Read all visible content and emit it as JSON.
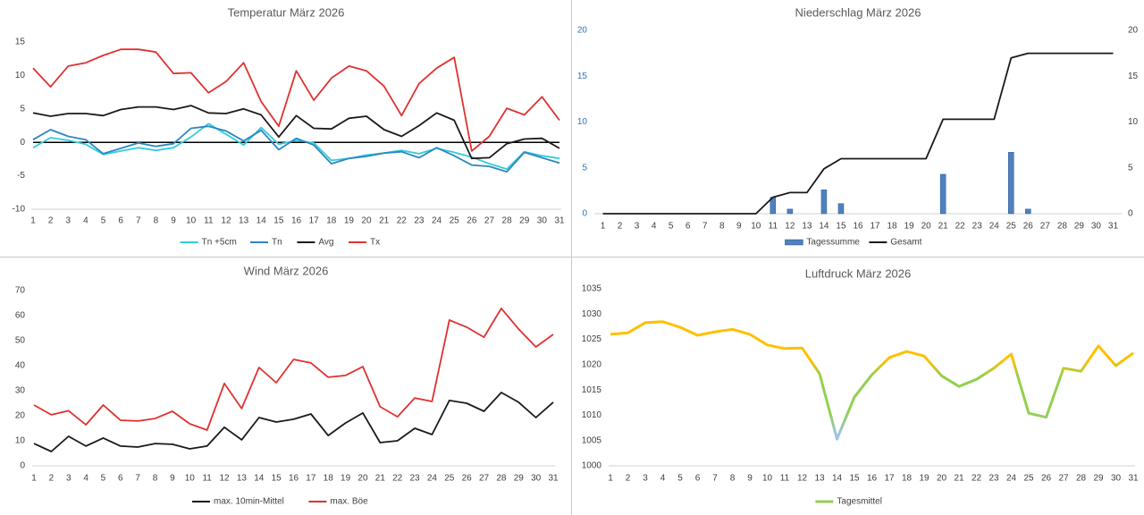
{
  "chart_data": [
    {
      "type": "line",
      "title": "Temperatur März 2026",
      "categories": [
        "1",
        "2",
        "3",
        "4",
        "5",
        "6",
        "7",
        "8",
        "9",
        "10",
        "11",
        "12",
        "13",
        "14",
        "15",
        "16",
        "17",
        "18",
        "19",
        "20",
        "21",
        "22",
        "23",
        "24",
        "25",
        "26",
        "27",
        "28",
        "29",
        "30",
        "31"
      ],
      "series": [
        {
          "name": "Tn +5cm",
          "color": "#33ccdd",
          "values": [
            -0.8,
            0.7,
            0.3,
            -0.3,
            -1.8,
            -1.3,
            -0.8,
            -1.2,
            -0.8,
            0.8,
            2.8,
            1.2,
            -0.4,
            2.2,
            -0.3,
            0.3,
            -0.1,
            -2.7,
            -2.4,
            -1.9,
            -1.6,
            -1.2,
            -1.7,
            -0.9,
            -1.5,
            -2.2,
            -3.2,
            -4.0,
            -1.4,
            -2.0,
            -2.4
          ]
        },
        {
          "name": "Tn",
          "color": "#2e86c1",
          "values": [
            0.4,
            1.9,
            0.9,
            0.4,
            -1.7,
            -0.9,
            -0.1,
            -0.6,
            -0.2,
            2.1,
            2.4,
            1.7,
            0.2,
            1.8,
            -1.1,
            0.6,
            -0.4,
            -3.2,
            -2.4,
            -2.1,
            -1.6,
            -1.4,
            -2.3,
            -0.8,
            -2.0,
            -3.4,
            -3.6,
            -4.4,
            -1.5,
            -2.3,
            -3.1
          ]
        },
        {
          "name": "Avg",
          "color": "#1a1a1a",
          "values": [
            4.4,
            3.9,
            4.3,
            4.3,
            4.0,
            4.9,
            5.3,
            5.3,
            4.9,
            5.5,
            4.4,
            4.3,
            5.0,
            4.1,
            0.8,
            4.0,
            2.1,
            2.0,
            3.6,
            3.9,
            1.9,
            0.9,
            2.5,
            4.4,
            3.3,
            -2.4,
            -2.3,
            -0.2,
            0.5,
            0.6,
            -0.9
          ]
        },
        {
          "name": "Tx",
          "color": "#e03131",
          "values": [
            11.1,
            8.3,
            11.4,
            11.9,
            13.0,
            13.9,
            13.9,
            13.5,
            10.3,
            10.4,
            7.4,
            9.1,
            11.9,
            6.1,
            2.4,
            10.7,
            6.3,
            9.6,
            11.4,
            10.7,
            8.4,
            4.0,
            8.8,
            11.1,
            12.7,
            -1.3,
            0.9,
            5.1,
            4.1,
            6.8,
            3.3
          ]
        }
      ],
      "ylim": [
        -10,
        15
      ],
      "yticks": [
        -10,
        -5,
        0,
        5,
        10,
        15
      ],
      "zero_line": true
    },
    {
      "type": "combo",
      "title": "Niederschlag März 2026",
      "categories": [
        "1",
        "2",
        "3",
        "4",
        "5",
        "6",
        "7",
        "8",
        "9",
        "10",
        "11",
        "12",
        "13",
        "14",
        "15",
        "16",
        "17",
        "18",
        "19",
        "20",
        "21",
        "22",
        "23",
        "24",
        "25",
        "26",
        "27",
        "28",
        "29",
        "30",
        "31"
      ],
      "series": [
        {
          "name": "Tagessumme",
          "type": "bar",
          "color": "#4f81bd",
          "values": [
            0,
            0,
            0,
            0,
            0,
            0,
            0,
            0,
            0,
            0,
            1.8,
            0.5,
            0,
            2.6,
            1.1,
            0,
            0,
            0,
            0,
            0,
            4.3,
            0,
            0,
            0,
            6.7,
            0.5,
            0,
            0,
            0,
            0,
            0
          ]
        },
        {
          "name": "Gesamt",
          "type": "line",
          "axis": "y2",
          "color": "#1a1a1a",
          "values": [
            0,
            0,
            0,
            0,
            0,
            0,
            0,
            0,
            0,
            0,
            1.8,
            2.3,
            2.3,
            4.9,
            6.0,
            6.0,
            6.0,
            6.0,
            6.0,
            6.0,
            10.3,
            10.3,
            10.3,
            10.3,
            17.0,
            17.5,
            17.5,
            17.5,
            17.5,
            17.5,
            17.5
          ]
        }
      ],
      "ylim": [
        0,
        20
      ],
      "yticks": [
        0,
        5,
        10,
        15,
        20
      ],
      "ytick_color": "#2e75b6",
      "y2lim": [
        0,
        20
      ],
      "y2ticks": [
        0,
        5,
        10,
        15,
        20
      ]
    },
    {
      "type": "line",
      "title": "Wind März 2026",
      "categories": [
        "1",
        "2",
        "3",
        "4",
        "5",
        "6",
        "7",
        "8",
        "9",
        "10",
        "11",
        "12",
        "13",
        "14",
        "15",
        "16",
        "17",
        "18",
        "19",
        "20",
        "21",
        "22",
        "23",
        "24",
        "25",
        "26",
        "27",
        "28",
        "29",
        "30",
        "31"
      ],
      "series": [
        {
          "name": "max. 10min-Mittel",
          "color": "#1a1a1a",
          "values": [
            8.9,
            5.7,
            11.8,
            7.9,
            11.1,
            7.9,
            7.5,
            8.9,
            8.6,
            6.8,
            7.9,
            15.4,
            10.4,
            19.3,
            17.5,
            18.6,
            20.7,
            12.1,
            17.1,
            21.1,
            9.3,
            10.0,
            15.0,
            12.5,
            26.1,
            25.0,
            21.8,
            29.3,
            25.4,
            19.3,
            25.4
          ]
        },
        {
          "name": "max. Böe",
          "color": "#e03131",
          "values": [
            24.3,
            20.4,
            22.0,
            16.4,
            24.3,
            18.2,
            17.9,
            18.9,
            21.8,
            16.8,
            14.3,
            32.9,
            22.9,
            39.3,
            33.2,
            42.5,
            41.1,
            35.4,
            36.1,
            39.6,
            23.6,
            19.6,
            27.1,
            25.7,
            58.2,
            55.4,
            51.4,
            62.9,
            54.6,
            47.5,
            52.5
          ]
        }
      ],
      "ylim": [
        0,
        70
      ],
      "yticks": [
        0,
        10,
        20,
        30,
        40,
        50,
        60,
        70
      ]
    },
    {
      "type": "line",
      "title": "Luftdruck März 2026",
      "categories": [
        "1",
        "2",
        "3",
        "4",
        "5",
        "6",
        "7",
        "8",
        "9",
        "10",
        "11",
        "12",
        "13",
        "14",
        "15",
        "16",
        "17",
        "18",
        "19",
        "20",
        "21",
        "22",
        "23",
        "24",
        "25",
        "26",
        "27",
        "28",
        "29",
        "30",
        "31"
      ],
      "series": [
        {
          "name": "Tagesmittel",
          "color": "#92d050",
          "values": [
            1026.0,
            1026.3,
            1028.3,
            1028.5,
            1027.4,
            1025.8,
            1026.5,
            1027.0,
            1026.0,
            1023.9,
            1023.2,
            1023.3,
            1018.2,
            1005.3,
            1013.6,
            1018.0,
            1021.4,
            1022.6,
            1021.7,
            1017.8,
            1015.7,
            1017.1,
            1019.3,
            1022.1,
            1010.4,
            1009.6,
            1019.3,
            1018.7,
            1023.7,
            1019.8,
            1022.3
          ]
        }
      ],
      "gradient": [
        "#9dc3e6",
        "#92d050",
        "#ffc000"
      ],
      "ylim": [
        1000,
        1035
      ],
      "yticks": [
        1000,
        1005,
        1010,
        1015,
        1020,
        1025,
        1030,
        1035
      ]
    }
  ]
}
